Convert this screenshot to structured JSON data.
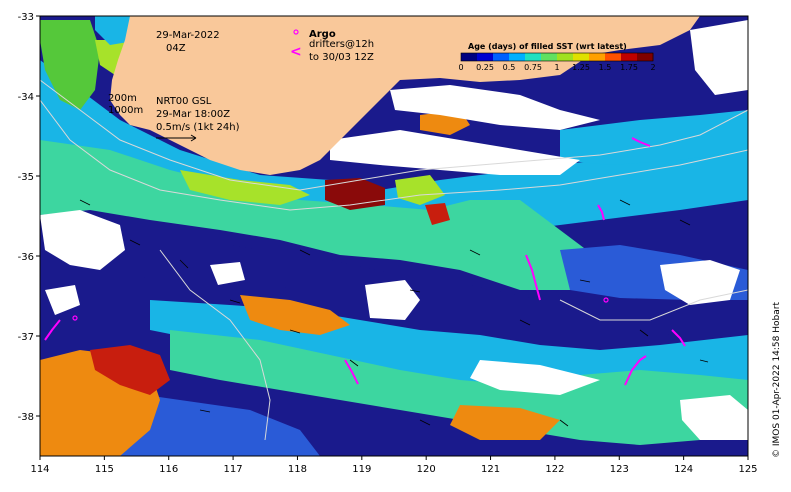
{
  "map": {
    "date_line1": "29-Mar-2022",
    "date_line2": "04Z",
    "contours_line1": "200m",
    "contours_line2": "1000m",
    "current_line1": "NRT00 GSL",
    "current_line2": "29-Mar 18:00Z",
    "current_line3": "0.5m/s (1kt 24h)",
    "argo_label": "Argo",
    "drifters_line1": "drifters@12h",
    "drifters_line2": "to 30/03 12Z",
    "credit": "© IMOS 01-Apr-2022 14:58 Hobart",
    "x_ticks": [
      "114",
      "115",
      "116",
      "117",
      "118",
      "119",
      "120",
      "121",
      "122",
      "123",
      "124",
      "125"
    ],
    "y_ticks": [
      "-33",
      "-34",
      "-35",
      "-36",
      "-37",
      "-38"
    ],
    "x_range": [
      114,
      125
    ],
    "y_range": [
      -38.5,
      -33
    ]
  },
  "colorbar": {
    "title": "Age (days) of filled SST (wrt latest)",
    "ticks": [
      "0",
      "0.25",
      "0.5",
      "0.75",
      "1",
      "1.25",
      "1.5",
      "1.75",
      "2"
    ],
    "colors": [
      "#000080",
      "#0000d0",
      "#0060ff",
      "#00b0ff",
      "#20e0c0",
      "#60e060",
      "#a0e020",
      "#e0e000",
      "#ffa000",
      "#ff5000",
      "#c00000",
      "#800000"
    ]
  },
  "colors": {
    "land": "#f9c89a",
    "navy": "#1a1a8c",
    "blue": "#2a5bd7",
    "cyan": "#19b5e6",
    "sea_green": "#3dd6a0",
    "green": "#55c83a",
    "lime": "#a7e22a",
    "orange": "#ee8a10",
    "red": "#c81e0e",
    "darkred": "#8a0a0a",
    "cloud": "#ffffff",
    "argo": "#ff00ff",
    "drifter": "#ff00ff"
  }
}
